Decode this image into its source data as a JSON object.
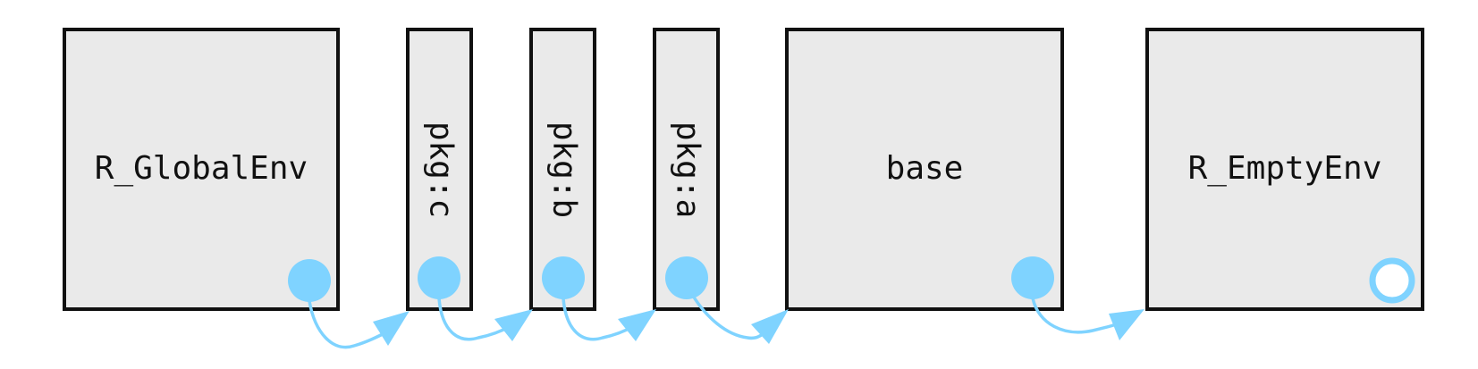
{
  "environments": [
    {
      "name": "R_GlobalEnv"
    },
    {
      "name": "pkg:c"
    },
    {
      "name": "pkg:b"
    },
    {
      "name": "pkg:a"
    },
    {
      "name": "base"
    },
    {
      "name": "R_EmptyEnv"
    }
  ],
  "colors": {
    "box_fill": "#eaeaea",
    "box_stroke": "#111111",
    "link": "#7fd3ff"
  },
  "icons": {
    "parent_pointer": "filled-circle",
    "empty_parent": "hollow-circle",
    "link_arrow": "curved-arrow"
  }
}
